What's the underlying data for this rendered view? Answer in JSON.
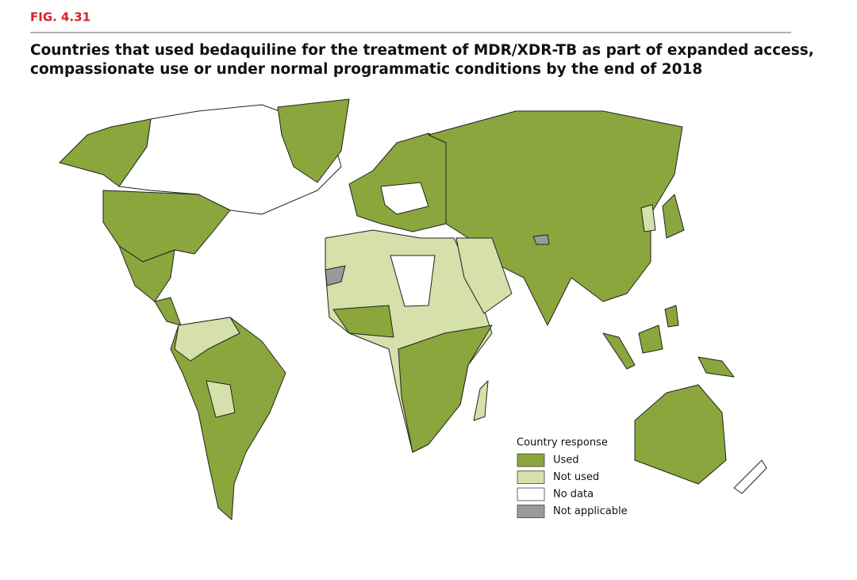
{
  "header": {
    "figure": "FIG. 4.31",
    "title": [
      "Countries that used bedaquiline for the treatment of MDR/XDR-TB as part of expanded access,",
      "compassionate use or under normal programmatic conditions by the end of 2018"
    ]
  },
  "legend": {
    "title": "Country response",
    "items": [
      {
        "label": "Used",
        "color": "#8aa63c"
      },
      {
        "label": "Not used",
        "color": "#d5e0aa"
      },
      {
        "label": "No data",
        "color": "#ffffff"
      },
      {
        "label": "Not applicable",
        "color": "#9a9a9a"
      }
    ]
  }
}
